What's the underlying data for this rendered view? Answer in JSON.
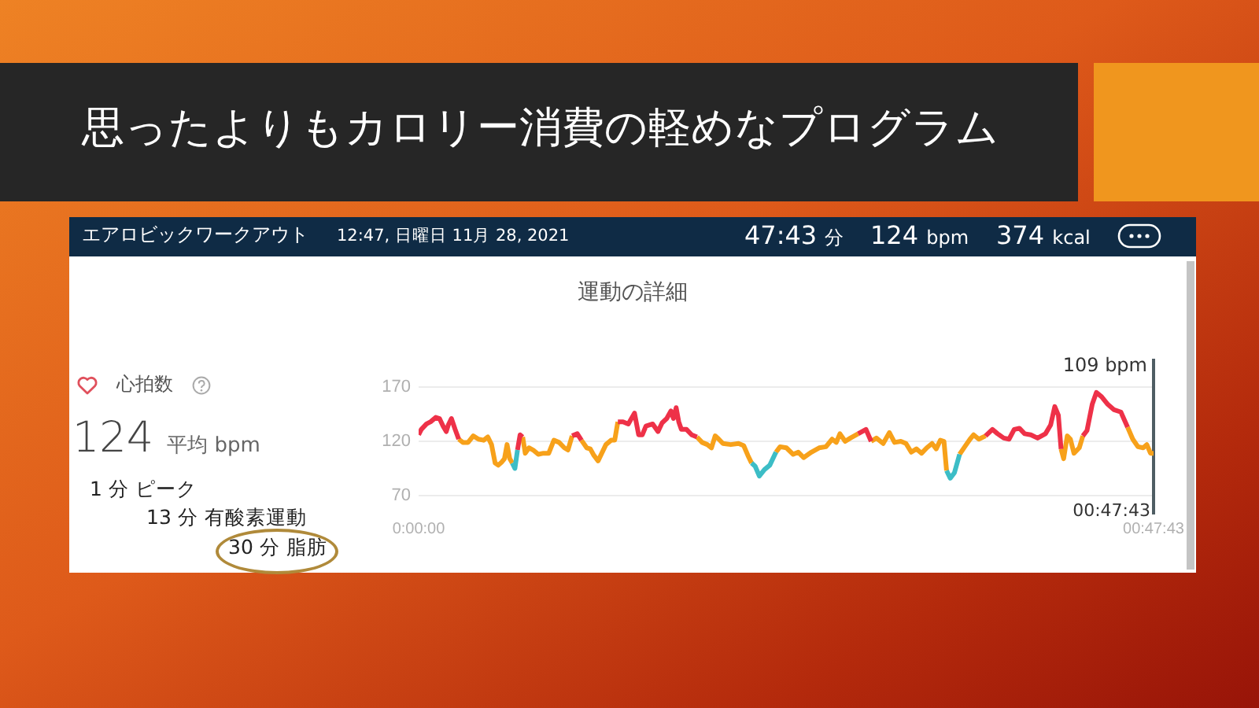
{
  "chart_data": {
    "type": "line",
    "title": "思ったよりもカロリー消費の軽めなプログラム",
    "subtitle": "運動の詳細",
    "annotations": [
      "エアロビックワークアウト",
      "12:47, 日曜日 11月 28, 2021",
      "47:43 分",
      "124 bpm",
      "374 kcal",
      "心拍数",
      "124 平均 bpm",
      "1 分 ピーク",
      "13 分 有酸素運動",
      "30 分 脂肪",
      "00:47:43"
    ],
    "x": [
      0,
      0.0029,
      0.0085,
      0.013,
      0.0186,
      0.0226,
      0.0265,
      0.0299,
      0.0321,
      0.0355,
      0.0395,
      0.0434,
      0.0479,
      0.0535,
      0.0591,
      0.0648,
      0.0704,
      0.0749,
      0.0789,
      0.0828,
      0.0862,
      0.0901,
      0.0929,
      0.0957,
      0.0986,
      0.1014,
      0.1042,
      0.107,
      0.1098,
      0.1126,
      0.1154,
      0.1194,
      0.1239,
      0.1295,
      0.1351,
      0.1408,
      0.1464,
      0.152,
      0.1577,
      0.1616,
      0.1661,
      0.1717,
      0.1762,
      0.1819,
      0.1858,
      0.1897,
      0.1942,
      0.1982,
      0.2027,
      0.2083,
      0.2122,
      0.2156,
      0.2212,
      0.2269,
      0.2336,
      0.2381,
      0.2421,
      0.246,
      0.2533,
      0.259,
      0.2635,
      0.2685,
      0.273,
      0.2758,
      0.2787,
      0.2815,
      0.2843,
      0.2899,
      0.2955,
      0.3012,
      0.3068,
      0.3124,
      0.3169,
      0.3209,
      0.3248,
      0.3293,
      0.3378,
      0.3462,
      0.3518,
      0.3563,
      0.3603,
      0.3642,
      0.3687,
      0.3743,
      0.38,
      0.3867,
      0.3912,
      0.398,
      0.4053,
      0.4109,
      0.4166,
      0.425,
      0.4334,
      0.4408,
      0.4475,
      0.452,
      0.4559,
      0.4616,
      0.4672,
      0.4756,
      0.4841,
      0.4897,
      0.4954,
      0.5027,
      0.5094,
      0.515,
      0.5218,
      0.5274,
      0.5331,
      0.5387,
      0.5443,
      0.5499,
      0.5556,
      0.5601,
      0.5646,
      0.5685,
      0.5713,
      0.5753,
      0.5798,
      0.5854,
      0.591,
      0.5967,
      0.6006,
      0.6062,
      0.6135,
      0.6209,
      0.6265,
      0.6332,
      0.6389,
      0.6445,
      0.6501,
      0.6558,
      0.6625,
      0.6698,
      0.6783,
      0.6839,
      0.6884,
      0.6923,
      0.6952,
      0.698,
      0.7019,
      0.7053,
      0.7092,
      0.7149,
      0.7188,
      0.7233,
      0.7289,
      0.7334,
      0.7391,
      0.7458,
      0.7526,
      0.7599,
      0.7672,
      0.7728,
      0.7784,
      0.7841,
      0.788,
      0.792,
      0.7953
    ],
    "series": [
      {
        "color": "#f7a11a",
        "values": [
          null,
          null,
          null,
          null,
          null,
          null,
          null,
          null,
          null,
          null,
          null,
          122,
          119,
          119,
          125,
          122,
          121,
          124,
          117,
          100,
          98,
          101,
          104,
          117,
          104,
          100,
          null,
          null,
          null,
          124,
          109,
          114,
          112,
          108,
          109,
          109,
          121,
          119,
          114,
          112,
          125,
          null,
          121,
          114,
          113,
          107,
          102,
          109,
          117,
          121,
          121,
          138,
          null,
          null,
          null,
          null,
          null,
          null,
          null,
          null,
          null,
          null,
          null,
          null,
          null,
          null,
          null,
          null,
          null,
          124,
          119,
          117,
          114,
          125,
          122,
          118,
          117,
          118,
          116,
          107,
          100,
          null,
          null,
          null,
          null,
          110,
          115,
          114,
          108,
          110,
          105,
          110,
          114,
          115,
          122,
          119,
          127,
          120,
          123,
          127,
          null,
          120,
          123,
          118,
          128,
          119,
          120,
          118,
          110,
          113,
          109,
          114,
          118,
          113,
          121,
          120,
          93,
          null,
          null,
          108,
          115,
          122,
          126,
          122,
          125,
          null,
          null,
          null,
          null,
          null,
          null,
          null,
          null,
          null,
          null,
          null,
          null,
          null,
          113,
          104,
          125,
          122,
          109,
          114,
          125,
          null,
          null,
          null,
          null,
          null,
          null,
          null,
          133,
          122,
          115,
          114,
          117,
          109,
          109
        ]
      },
      {
        "color": "#ee3148",
        "values": [
          126,
          131,
          136,
          138,
          142,
          141,
          134,
          129,
          135,
          141,
          131,
          122,
          null,
          null,
          null,
          null,
          null,
          null,
          null,
          null,
          null,
          null,
          null,
          null,
          null,
          null,
          null,
          112,
          126,
          124,
          null,
          null,
          null,
          null,
          null,
          null,
          null,
          null,
          null,
          null,
          125,
          127,
          121,
          null,
          null,
          null,
          null,
          null,
          null,
          null,
          null,
          138,
          138,
          136,
          146,
          126,
          126,
          134,
          136,
          129,
          137,
          141,
          148,
          141,
          151,
          138,
          131,
          131,
          126,
          124,
          null,
          null,
          null,
          null,
          null,
          null,
          null,
          null,
          null,
          null,
          null,
          null,
          null,
          null,
          null,
          null,
          null,
          null,
          null,
          null,
          null,
          null,
          null,
          null,
          null,
          null,
          null,
          null,
          null,
          127,
          131,
          120,
          null,
          null,
          null,
          null,
          null,
          null,
          null,
          null,
          null,
          null,
          null,
          null,
          null,
          null,
          null,
          null,
          null,
          null,
          null,
          null,
          null,
          null,
          125,
          131,
          127,
          123,
          122,
          131,
          132,
          127,
          126,
          123,
          127,
          135,
          152,
          144,
          113,
          null,
          null,
          null,
          null,
          null,
          125,
          130,
          154,
          165,
          161,
          154,
          149,
          147,
          133,
          null,
          null,
          null,
          null,
          null,
          null
        ]
      },
      {
        "color": "#3cbdc6",
        "values": [
          null,
          null,
          null,
          null,
          null,
          null,
          null,
          null,
          null,
          null,
          null,
          null,
          null,
          null,
          null,
          null,
          null,
          null,
          null,
          null,
          null,
          null,
          null,
          null,
          null,
          100,
          95,
          112,
          null,
          null,
          null,
          null,
          null,
          null,
          null,
          null,
          null,
          null,
          null,
          null,
          null,
          null,
          null,
          null,
          null,
          null,
          null,
          null,
          null,
          null,
          null,
          null,
          null,
          null,
          null,
          null,
          null,
          null,
          null,
          null,
          null,
          null,
          null,
          null,
          null,
          null,
          null,
          null,
          null,
          null,
          null,
          null,
          null,
          null,
          null,
          null,
          null,
          null,
          null,
          null,
          100,
          97,
          88,
          94,
          98,
          110,
          null,
          null,
          null,
          null,
          null,
          null,
          null,
          null,
          null,
          null,
          null,
          null,
          null,
          null,
          null,
          null,
          null,
          null,
          null,
          null,
          null,
          null,
          null,
          null,
          null,
          null,
          null,
          null,
          null,
          null,
          93,
          86,
          91,
          108,
          null,
          null,
          null,
          null,
          null,
          null,
          null,
          null,
          null,
          null,
          null,
          null,
          null,
          null,
          null,
          null,
          null,
          null,
          null,
          null,
          null,
          null,
          null,
          null,
          null,
          null,
          null,
          null,
          null,
          null,
          null,
          null,
          null,
          null,
          null,
          null,
          null,
          null,
          null
        ]
      }
    ],
    "xlim": [
      0,
      0.7953
    ],
    "xticks": [
      {
        "value": 0,
        "label": "0:00:00"
      },
      {
        "value": 0.7953,
        "label": "00:47:43"
      }
    ],
    "ylim": [
      70,
      170
    ],
    "yticks": [
      70,
      120,
      170
    ],
    "grid": "y",
    "ref_lines": [
      {
        "axis": "x",
        "value": 0.7953,
        "label": "109 bpm",
        "color": "#4f5d63"
      }
    ]
  }
}
